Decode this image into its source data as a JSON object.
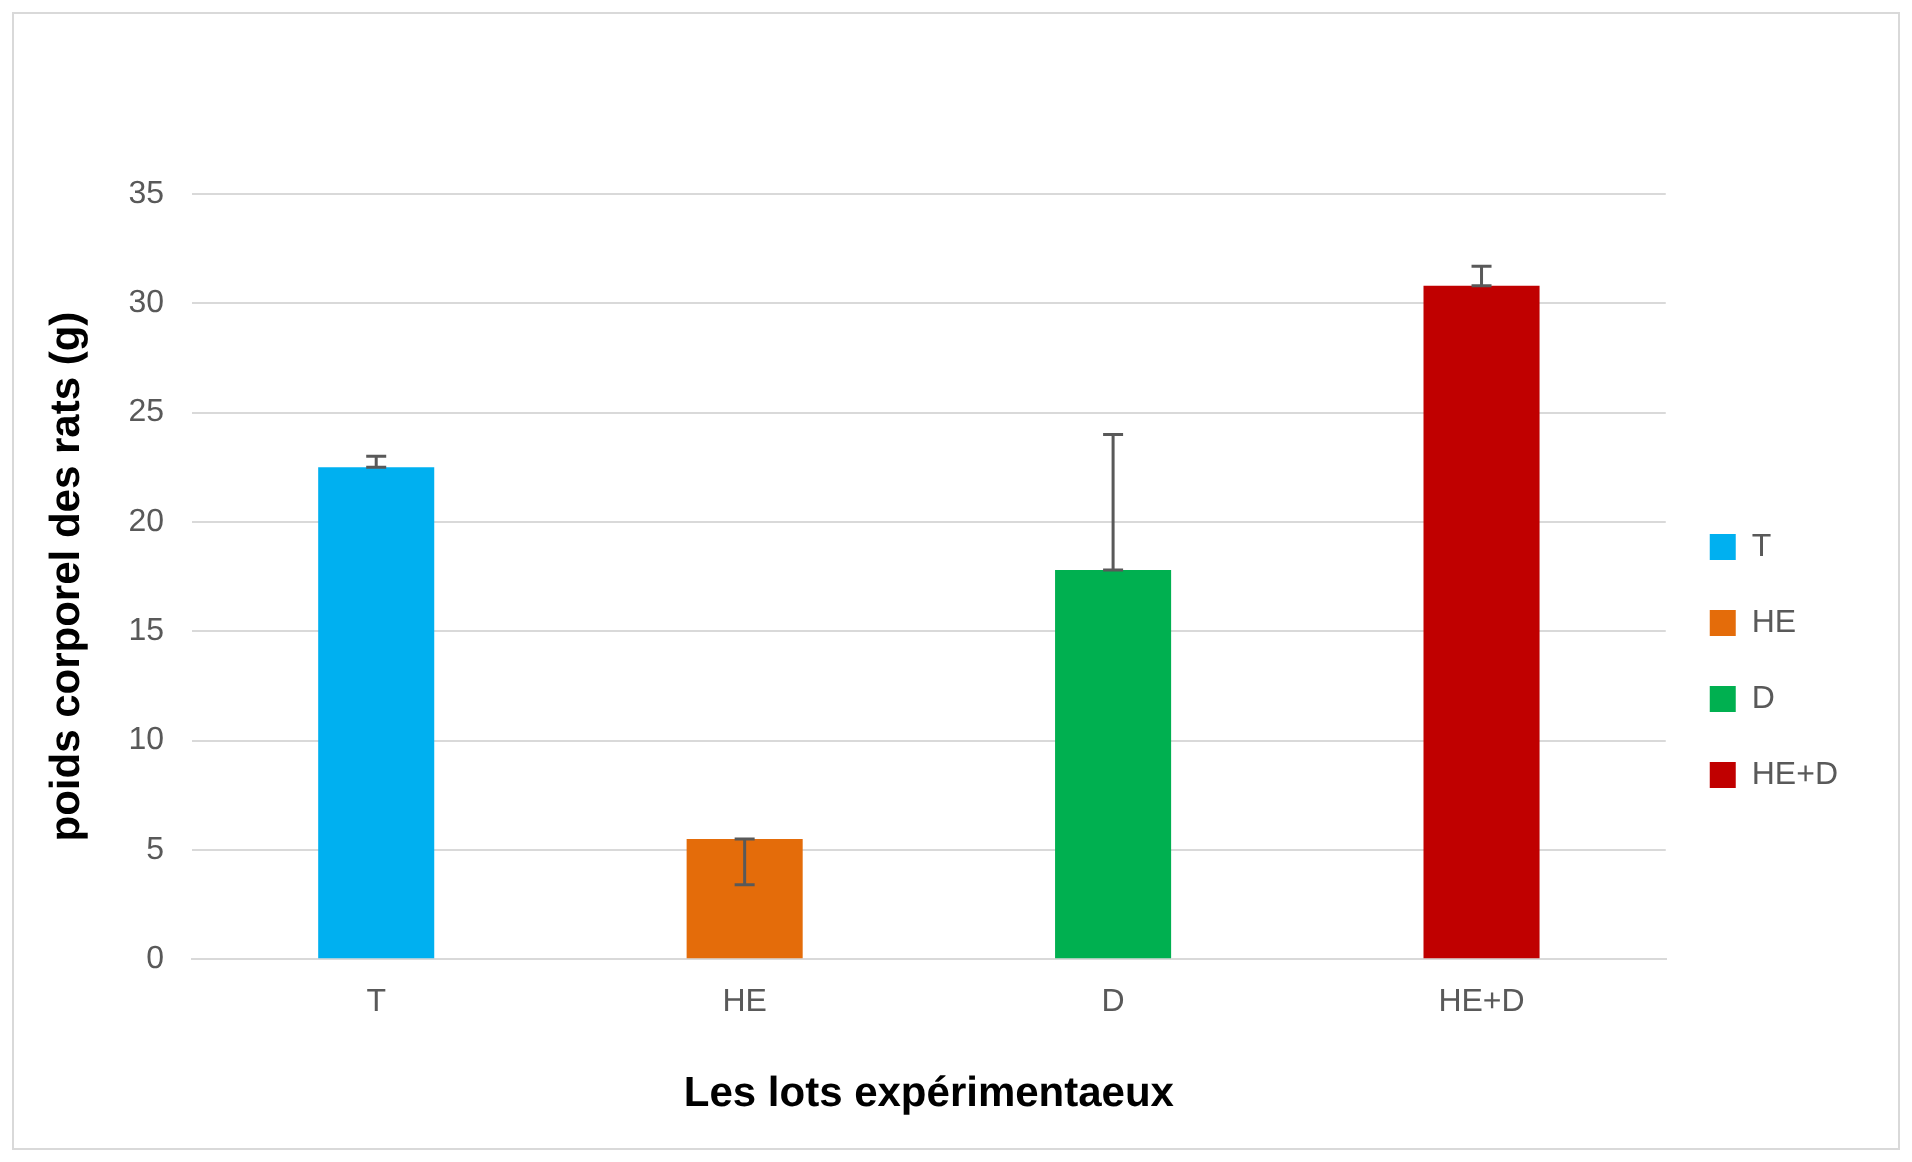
{
  "chart_data": {
    "type": "bar",
    "xlabel": "Les lots expérimentaeux",
    "ylabel": "poids corporel des rats (g)",
    "categories": [
      "T",
      "HE",
      "D",
      "HE+D"
    ],
    "series": [
      {
        "name": "T",
        "color": "#00b0f0",
        "values": [
          22.5,
          null,
          null,
          null
        ],
        "errors": [
          [
            22.5,
            23.0
          ],
          null,
          null,
          null
        ]
      },
      {
        "name": "HE",
        "color": "#e46c0a",
        "values": [
          null,
          5.5,
          null,
          null
        ],
        "errors": [
          null,
          [
            3.4,
            5.5
          ],
          null,
          null
        ]
      },
      {
        "name": "D",
        "color": "#00b050",
        "values": [
          null,
          null,
          17.8,
          null
        ],
        "errors": [
          null,
          null,
          [
            17.8,
            24.0
          ],
          null
        ]
      },
      {
        "name": "HE+D",
        "color": "#c00000",
        "values": [
          null,
          null,
          null,
          30.8
        ],
        "errors": [
          null,
          null,
          null,
          [
            30.8,
            31.7
          ]
        ]
      }
    ],
    "ylim": [
      0,
      35
    ],
    "yticks": [
      0,
      5,
      10,
      15,
      20,
      25,
      30,
      35
    ],
    "grid": "y",
    "legend": "right"
  }
}
